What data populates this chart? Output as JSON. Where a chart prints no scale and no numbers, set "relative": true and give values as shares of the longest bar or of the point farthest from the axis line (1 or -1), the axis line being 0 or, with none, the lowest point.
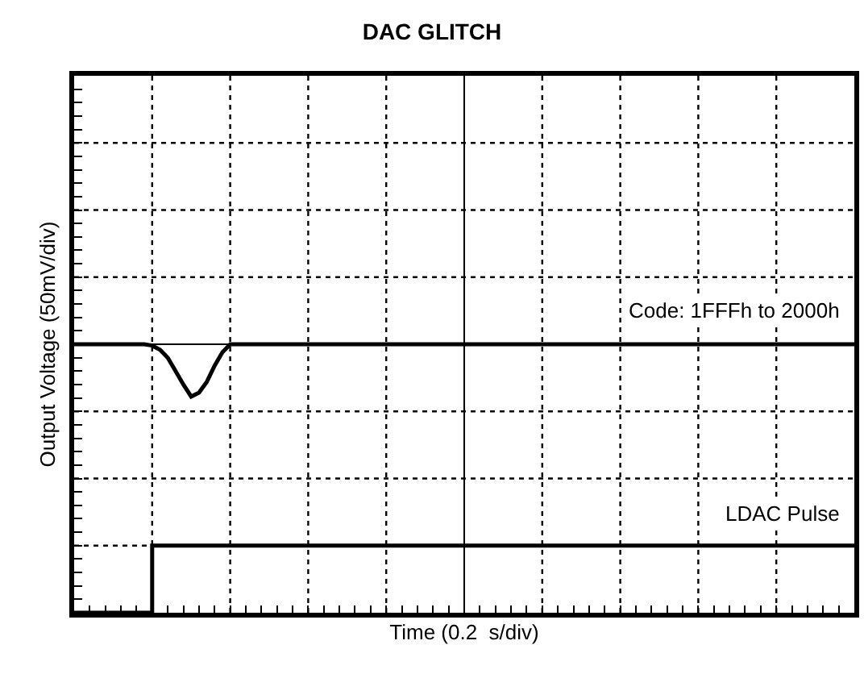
{
  "chart_data": {
    "type": "line",
    "title": "DAC GLITCH",
    "xlabel": "Time (0.2  s/div)",
    "ylabel": "Output Voltage (50mV/div)",
    "relative": true,
    "grid": true,
    "line_style": "solid",
    "marker": "none",
    "categories": [
      null,
      null,
      null,
      null,
      null,
      null,
      null,
      null,
      null,
      null,
      null,
      null,
      null,
      null,
      null,
      null,
      null,
      null,
      null,
      null,
      null,
      null,
      null,
      null,
      null,
      null,
      null,
      null,
      null,
      null,
      null,
      null,
      null,
      null,
      null,
      null,
      null,
      null,
      null,
      null,
      null,
      null,
      null,
      null,
      null,
      null,
      null,
      null,
      null,
      null,
      null,
      null,
      null,
      null,
      null,
      null,
      null,
      null,
      null,
      null,
      null,
      null,
      null,
      null,
      null,
      null,
      null,
      null,
      null,
      null,
      null,
      null,
      null,
      null,
      null,
      null,
      null,
      null,
      null,
      null,
      null,
      null,
      null,
      null,
      null,
      null,
      null,
      null,
      null,
      null,
      null,
      null,
      null,
      null,
      null,
      null,
      null,
      null,
      null,
      null,
      null
    ],
    "series": [
      {
        "color": "#000000",
        "values": [
          1,
          1,
          1,
          1,
          1,
          1,
          1,
          1,
          1,
          1,
          0.995,
          0.98,
          0.95,
          0.9,
          0.85,
          0.805,
          0.82,
          0.86,
          0.92,
          0.97,
          1,
          1,
          1,
          1,
          1,
          1,
          1,
          1,
          1,
          1,
          1,
          1,
          1,
          1,
          1,
          1,
          1,
          1,
          1,
          1,
          1,
          1,
          1,
          1,
          1,
          1,
          1,
          1,
          1,
          1,
          1,
          1,
          1,
          1,
          1,
          1,
          1,
          1,
          1,
          1,
          1,
          1,
          1,
          1,
          1,
          1,
          1,
          1,
          1,
          1,
          1,
          1,
          1,
          1,
          1,
          1,
          1,
          1,
          1,
          1,
          1,
          1,
          1,
          1,
          1,
          1,
          1,
          1,
          1,
          1,
          1,
          1,
          1,
          1,
          1,
          1,
          1,
          1,
          1,
          1,
          1
        ]
      },
      {
        "type": "step",
        "color": "#000000",
        "values": [
          0,
          0,
          0,
          0,
          0,
          0,
          0,
          0,
          0,
          0,
          0.25,
          0.25,
          0.25,
          0.25,
          0.25,
          0.25,
          0.25,
          0.25,
          0.25,
          0.25,
          0.25,
          0.25,
          0.25,
          0.25,
          0.25,
          0.25,
          0.25,
          0.25,
          0.25,
          0.25,
          0.25,
          0.25,
          0.25,
          0.25,
          0.25,
          0.25,
          0.25,
          0.25,
          0.25,
          0.25,
          0.25,
          0.25,
          0.25,
          0.25,
          0.25,
          0.25,
          0.25,
          0.25,
          0.25,
          0.25,
          0.25,
          0.25,
          0.25,
          0.25,
          0.25,
          0.25,
          0.25,
          0.25,
          0.25,
          0.25,
          0.25,
          0.25,
          0.25,
          0.25,
          0.25,
          0.25,
          0.25,
          0.25,
          0.25,
          0.25,
          0.25,
          0.25,
          0.25,
          0.25,
          0.25,
          0.25,
          0.25,
          0.25,
          0.25,
          0.25,
          0.25,
          0.25,
          0.25,
          0.25,
          0.25,
          0.25,
          0.25,
          0.25,
          0.25,
          0.25,
          0.25,
          0.25,
          0.25,
          0.25,
          0.25,
          0.25,
          0.25,
          0.25,
          0.25,
          0.25,
          0.25
        ]
      }
    ],
    "annotations": [
      "Code: 1FFFh to 2000h",
      "LDAC Pulse"
    ]
  }
}
